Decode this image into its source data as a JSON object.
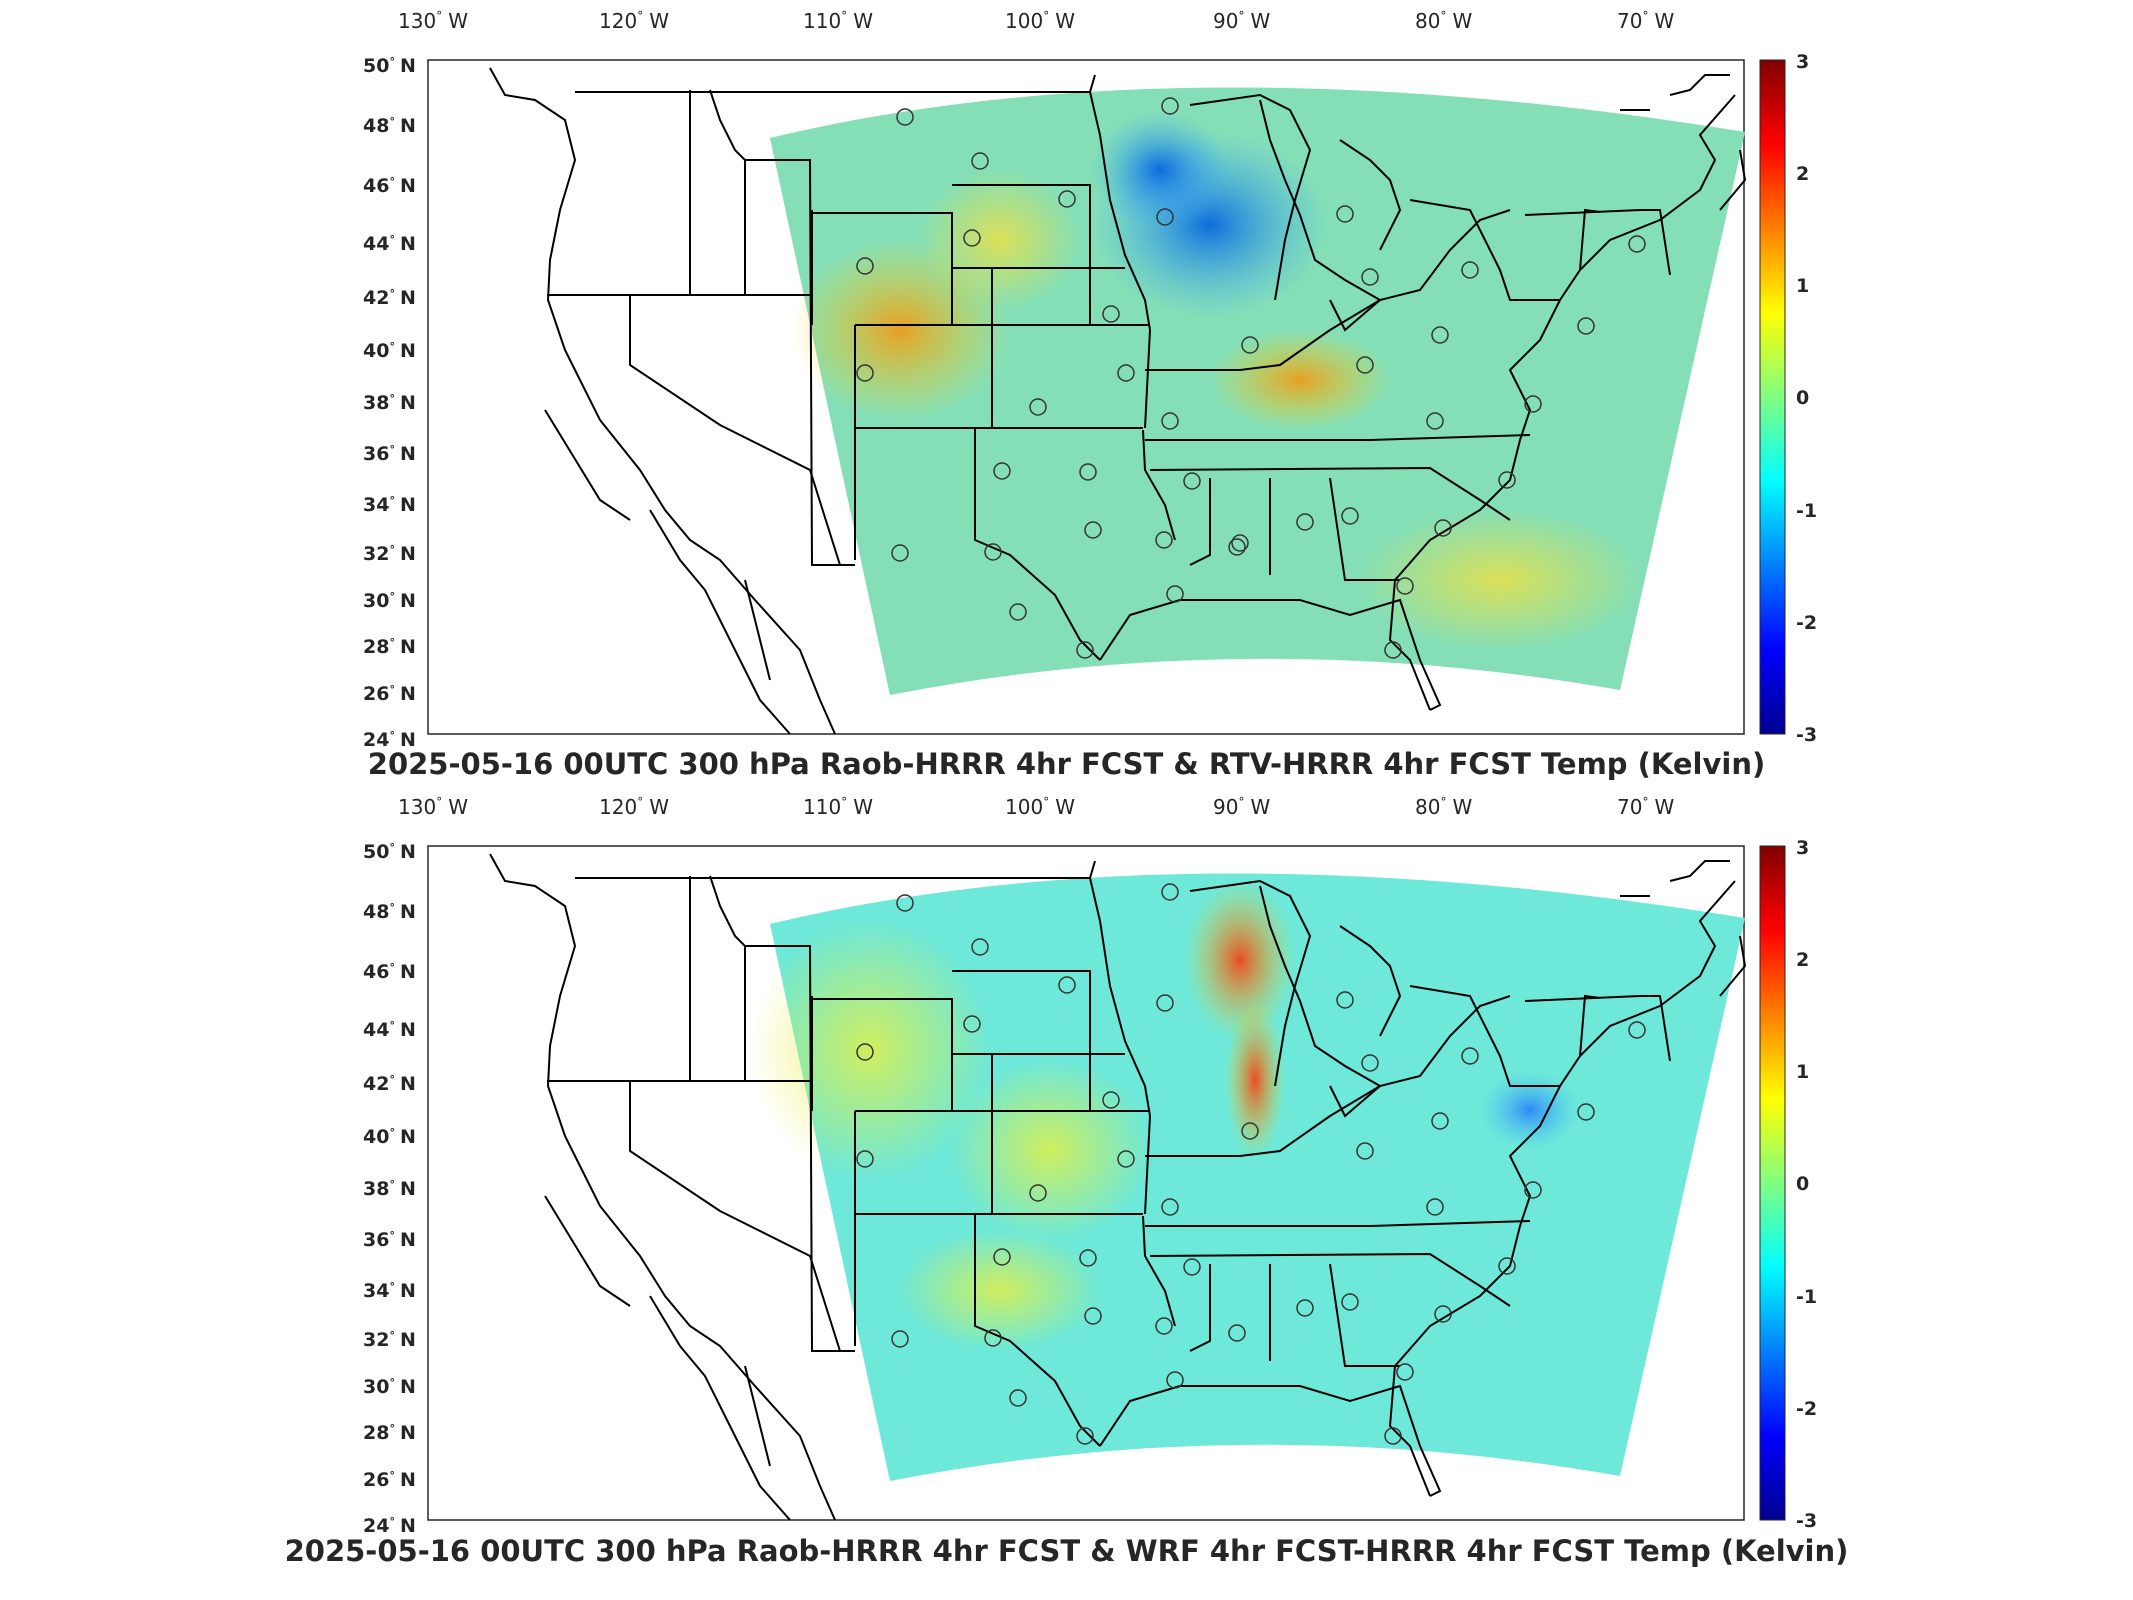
{
  "panels": [
    {
      "title": "2025-05-16 00UTC 300 hPa Raob-HRRR 4hr FCST & RTV-HRRR 4hr FCST Temp (Kelvin)"
    },
    {
      "title": "2025-05-16 00UTC 300 hPa Raob-HRRR 4hr FCST & WRF 4hr FCST-HRRR 4hr FCST Temp (Kelvin)"
    }
  ],
  "axes": {
    "lon_ticks": [
      "130",
      "120",
      "110",
      "100",
      "90",
      "80",
      "70"
    ],
    "lon_hemisphere": "W",
    "lat_ticks": [
      "50",
      "48",
      "46",
      "44",
      "42",
      "40",
      "38",
      "36",
      "34",
      "32",
      "30",
      "28",
      "26",
      "24"
    ],
    "lat_hemisphere": "N",
    "degree_symbol": "°"
  },
  "colorbar": {
    "ticks": [
      "3",
      "2",
      "1",
      "0",
      "-1",
      "-2",
      "-3"
    ],
    "range": [
      -3,
      3
    ],
    "colormap": [
      "#00008f",
      "#0000ff",
      "#0080ff",
      "#00ffff",
      "#80ff80",
      "#ffff00",
      "#ff8000",
      "#ff0000",
      "#800000"
    ]
  },
  "map": {
    "domain_fill_top": "#7ee0a0",
    "land_outline_color": "#000000",
    "station_marker": "circle"
  }
}
